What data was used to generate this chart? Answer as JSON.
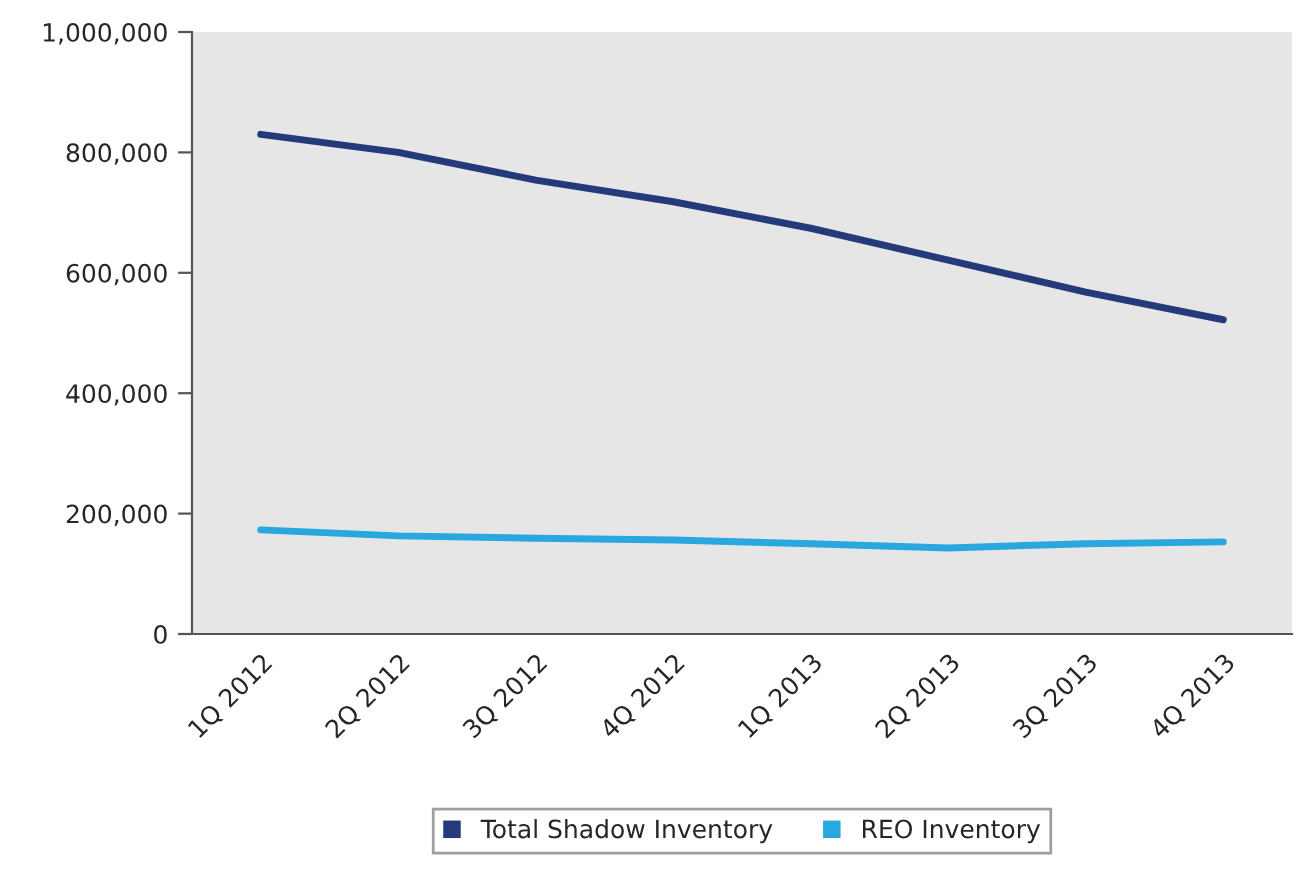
{
  "chart_data": {
    "type": "line",
    "categories": [
      "1Q 2012",
      "2Q 2012",
      "3Q 2012",
      "4Q 2012",
      "1Q 2013",
      "2Q 2013",
      "3Q 2013",
      "4Q 2013"
    ],
    "series": [
      {
        "name": "Total Shadow Inventory",
        "color": "#253a7a",
        "values": [
          830000,
          800000,
          754000,
          718000,
          674000,
          621000,
          568000,
          522000
        ]
      },
      {
        "name": "REO Inventory",
        "color": "#29a8e0",
        "values": [
          173000,
          163000,
          159000,
          156000,
          150000,
          143000,
          150000,
          153000
        ]
      }
    ],
    "ylim": [
      0,
      1000000
    ],
    "yticks": [
      {
        "value": 0,
        "label": "0"
      },
      {
        "value": 200000,
        "label": "200,000"
      },
      {
        "value": 400000,
        "label": "400,000"
      },
      {
        "value": 600000,
        "label": "600,000"
      },
      {
        "value": 800000,
        "label": "800,000"
      },
      {
        "value": 1000000,
        "label": "1,000,000"
      }
    ],
    "grid": false,
    "legend": "bottom",
    "marker": "none",
    "line_style": "solid"
  }
}
